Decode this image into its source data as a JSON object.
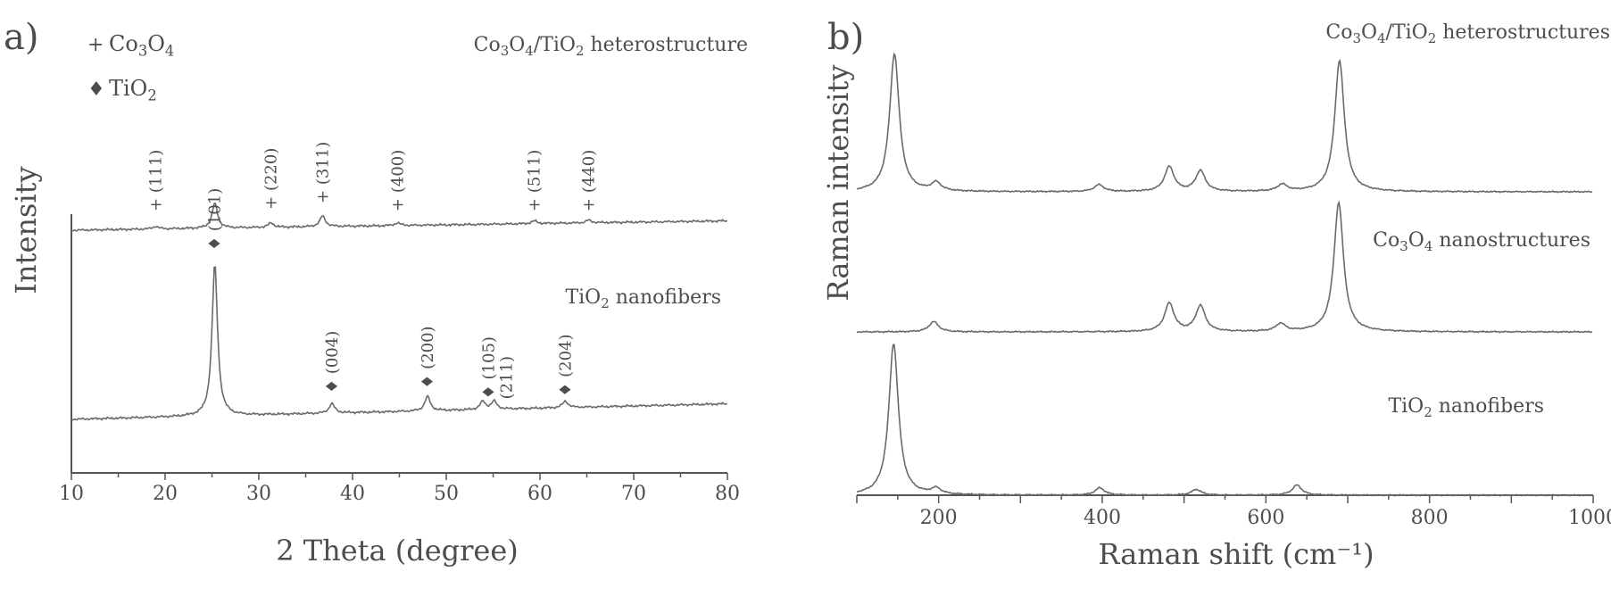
{
  "chart_data": [
    {
      "type": "line",
      "panel_label": "a)",
      "xlabel": "2 Theta (degree)",
      "ylabel": "Intensity",
      "xlim": [
        10,
        80
      ],
      "x_ticks": [
        10,
        20,
        30,
        40,
        50,
        60,
        70,
        80
      ],
      "x_tick_labels": [
        "10",
        "20",
        "30",
        "40",
        "50",
        "60",
        "70",
        "80"
      ],
      "legend": [
        {
          "symbol": "+",
          "label": "Co3O4"
        },
        {
          "symbol": "♦",
          "label": "TiO2"
        }
      ],
      "series": [
        {
          "name": "Co3O4/TiO2 heterostructure",
          "offset": 60,
          "peaks": [
            [
              25.3,
              28
            ],
            [
              36.8,
              12
            ],
            [
              31.3,
              5
            ],
            [
              19.0,
              3
            ],
            [
              44.8,
              3
            ],
            [
              59.4,
              3
            ],
            [
              65.2,
              3
            ]
          ],
          "peak_labels": [
            {
              "x": 19.0,
              "text": "+ (111)"
            },
            {
              "x": 31.3,
              "text": "+ (220)"
            },
            {
              "x": 36.8,
              "text": "+ (311)"
            },
            {
              "x": 44.8,
              "text": "+ (400)"
            },
            {
              "x": 59.4,
              "text": "+ (511)"
            },
            {
              "x": 65.2,
              "text": "+ (440)"
            }
          ]
        },
        {
          "name": "TiO2 nanofibers",
          "offset": 0,
          "peaks": [
            [
              25.3,
              95
            ],
            [
              37.8,
              6
            ],
            [
              48.0,
              9
            ],
            [
              53.9,
              5
            ],
            [
              55.1,
              5
            ],
            [
              62.7,
              4
            ]
          ],
          "peak_labels": [
            {
              "x": 25.3,
              "text": "♦ (101)"
            },
            {
              "x": 37.8,
              "text": "♦ (004)"
            },
            {
              "x": 48.0,
              "text": "♦ (200)"
            },
            {
              "x": 54.5,
              "text": "♦ (105)\n(211)"
            },
            {
              "x": 62.7,
              "text": "♦ (204)"
            }
          ]
        }
      ]
    },
    {
      "type": "line",
      "panel_label": "b)",
      "xlabel": "Raman shift (cm⁻¹)",
      "ylabel": "Raman intensity",
      "xlim": [
        100,
        1000
      ],
      "x_ticks": [
        200,
        400,
        600,
        800,
        1000
      ],
      "x_tick_labels": [
        "200",
        "400",
        "600",
        "800",
        "1000"
      ],
      "series": [
        {
          "name": "Co3O4/TiO2 heterostructures",
          "offset": 2,
          "peaks": [
            [
              146,
              100
            ],
            [
              197,
              6
            ],
            [
              396,
              5
            ],
            [
              482,
              18
            ],
            [
              520,
              15
            ],
            [
              620,
              5
            ],
            [
              690,
              95
            ]
          ]
        },
        {
          "name": "Co3O4 nanostructures",
          "offset": 1,
          "peaks": [
            [
              194,
              8
            ],
            [
              482,
              22
            ],
            [
              520,
              20
            ],
            [
              618,
              6
            ],
            [
              689,
              100
            ]
          ]
        },
        {
          "name": "TiO2 nanofibers",
          "offset": 0,
          "peaks": [
            [
              145,
              105
            ],
            [
              197,
              4
            ],
            [
              397,
              5
            ],
            [
              515,
              4
            ],
            [
              638,
              7
            ]
          ]
        }
      ]
    }
  ]
}
